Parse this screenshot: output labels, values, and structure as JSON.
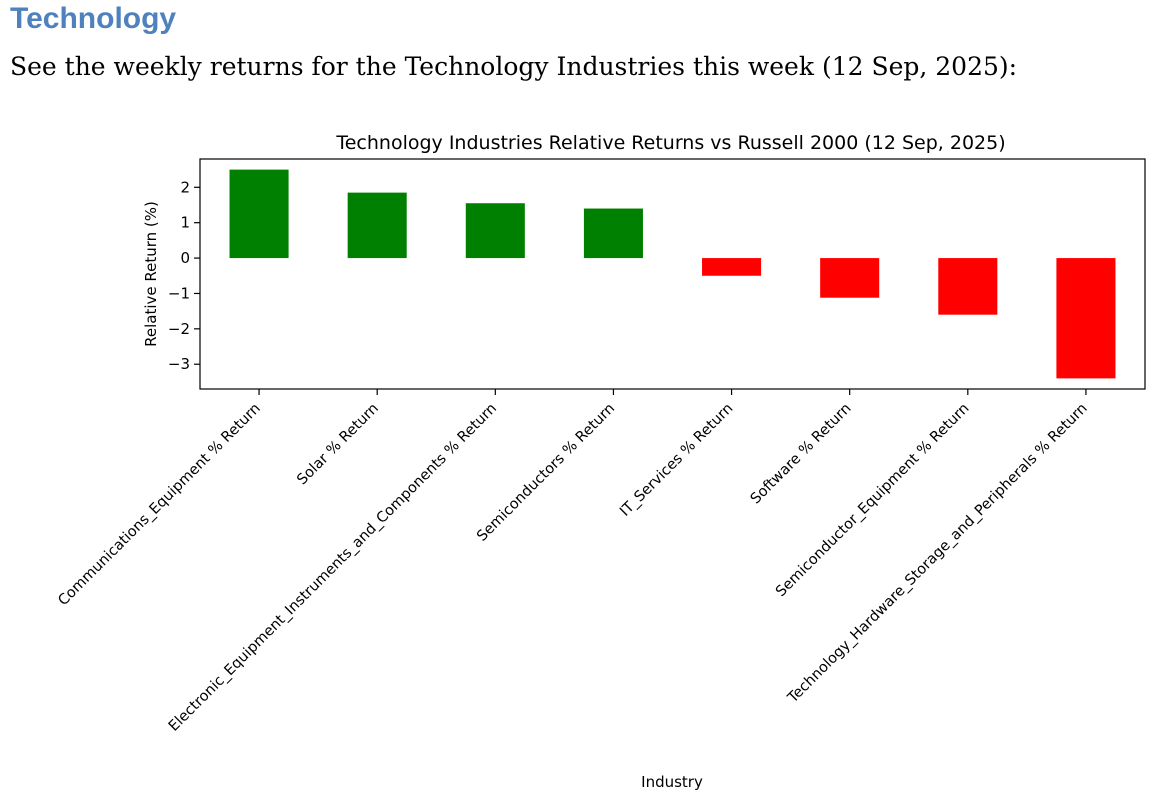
{
  "document": {
    "heading": "Technology",
    "intro": "See the weekly returns for the Technology Industries this week (12 Sep, 2025):"
  },
  "chart_data": {
    "type": "bar",
    "title": "Technology Industries Relative Returns vs Russell 2000 (12 Sep, 2025)",
    "xlabel": "Industry",
    "ylabel": "Relative Return (%)",
    "ylim": [
      -3.7,
      2.8
    ],
    "yticks": [
      2,
      1,
      0,
      -1,
      -2,
      -3
    ],
    "ytick_labels": [
      "2",
      "1",
      "0",
      "−1",
      "−2",
      "−3"
    ],
    "categories": [
      "Communications_Equipment % Return",
      "Solar % Return",
      "Electronic_Equipment_Instruments_and_Components % Return",
      "Semiconductors % Return",
      "IT_Services % Return",
      "Software % Return",
      "Semiconductor_Equipment % Return",
      "Technology_Hardware_Storage_and_Peripherals % Return"
    ],
    "values": [
      2.5,
      1.85,
      1.55,
      1.4,
      -0.5,
      -1.12,
      -1.6,
      -3.4
    ],
    "positive_color": "#008000",
    "negative_color": "#ff0000",
    "grid": false,
    "legend": false
  }
}
